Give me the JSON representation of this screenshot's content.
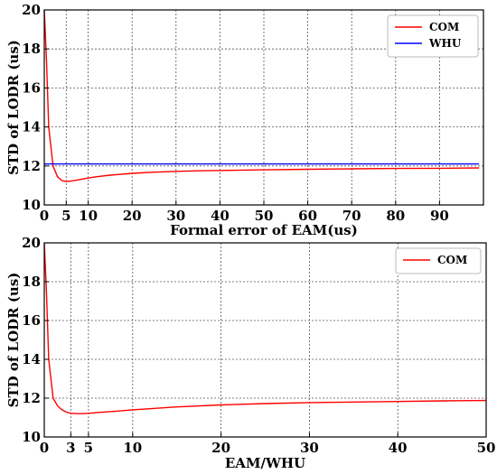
{
  "chart_data": [
    {
      "type": "line",
      "xlabel": "Formal error of EAM(us)",
      "ylabel": "STD of LODR (us)",
      "xlim": [
        0,
        100
      ],
      "ylim": [
        10,
        20
      ],
      "xticks": [
        0,
        5,
        10,
        20,
        30,
        40,
        50,
        60,
        70,
        80,
        90
      ],
      "yticks": [
        10,
        12,
        14,
        16,
        18,
        20
      ],
      "grid": true,
      "legend_position": "top-right",
      "series": [
        {
          "name": "COM",
          "color": "#ff0000",
          "x": [
            0,
            0.5,
            1,
            2,
            3,
            4,
            5,
            6,
            7,
            8,
            10,
            12,
            15,
            20,
            25,
            30,
            35,
            40,
            50,
            60,
            70,
            80,
            90,
            99
          ],
          "y": [
            20.0,
            17.5,
            14.0,
            12.0,
            11.45,
            11.25,
            11.2,
            11.22,
            11.26,
            11.3,
            11.38,
            11.45,
            11.53,
            11.62,
            11.68,
            11.72,
            11.75,
            11.77,
            11.8,
            11.83,
            11.85,
            11.87,
            11.88,
            11.9
          ]
        },
        {
          "name": "WHU",
          "color": "#0000ff",
          "x": [
            0,
            99
          ],
          "y": [
            12.1,
            12.1
          ]
        }
      ]
    },
    {
      "type": "line",
      "xlabel": "EAM/WHU",
      "ylabel": "STD of LODR (us)",
      "xlim": [
        0,
        50
      ],
      "ylim": [
        10,
        20
      ],
      "xticks": [
        0,
        3,
        5,
        10,
        20,
        30,
        40,
        50
      ],
      "yticks": [
        10,
        12,
        14,
        16,
        18,
        20
      ],
      "grid": true,
      "legend_position": "top-right",
      "series": [
        {
          "name": "COM",
          "color": "#ff0000",
          "x": [
            0,
            0.25,
            0.5,
            1,
            1.5,
            2,
            2.5,
            3,
            4,
            5,
            6,
            8,
            10,
            15,
            20,
            25,
            30,
            35,
            40,
            45,
            50
          ],
          "y": [
            20.0,
            17.5,
            14.0,
            12.0,
            11.6,
            11.4,
            11.28,
            11.22,
            11.2,
            11.22,
            11.26,
            11.32,
            11.4,
            11.55,
            11.65,
            11.72,
            11.77,
            11.8,
            11.83,
            11.86,
            11.88
          ]
        }
      ]
    }
  ]
}
